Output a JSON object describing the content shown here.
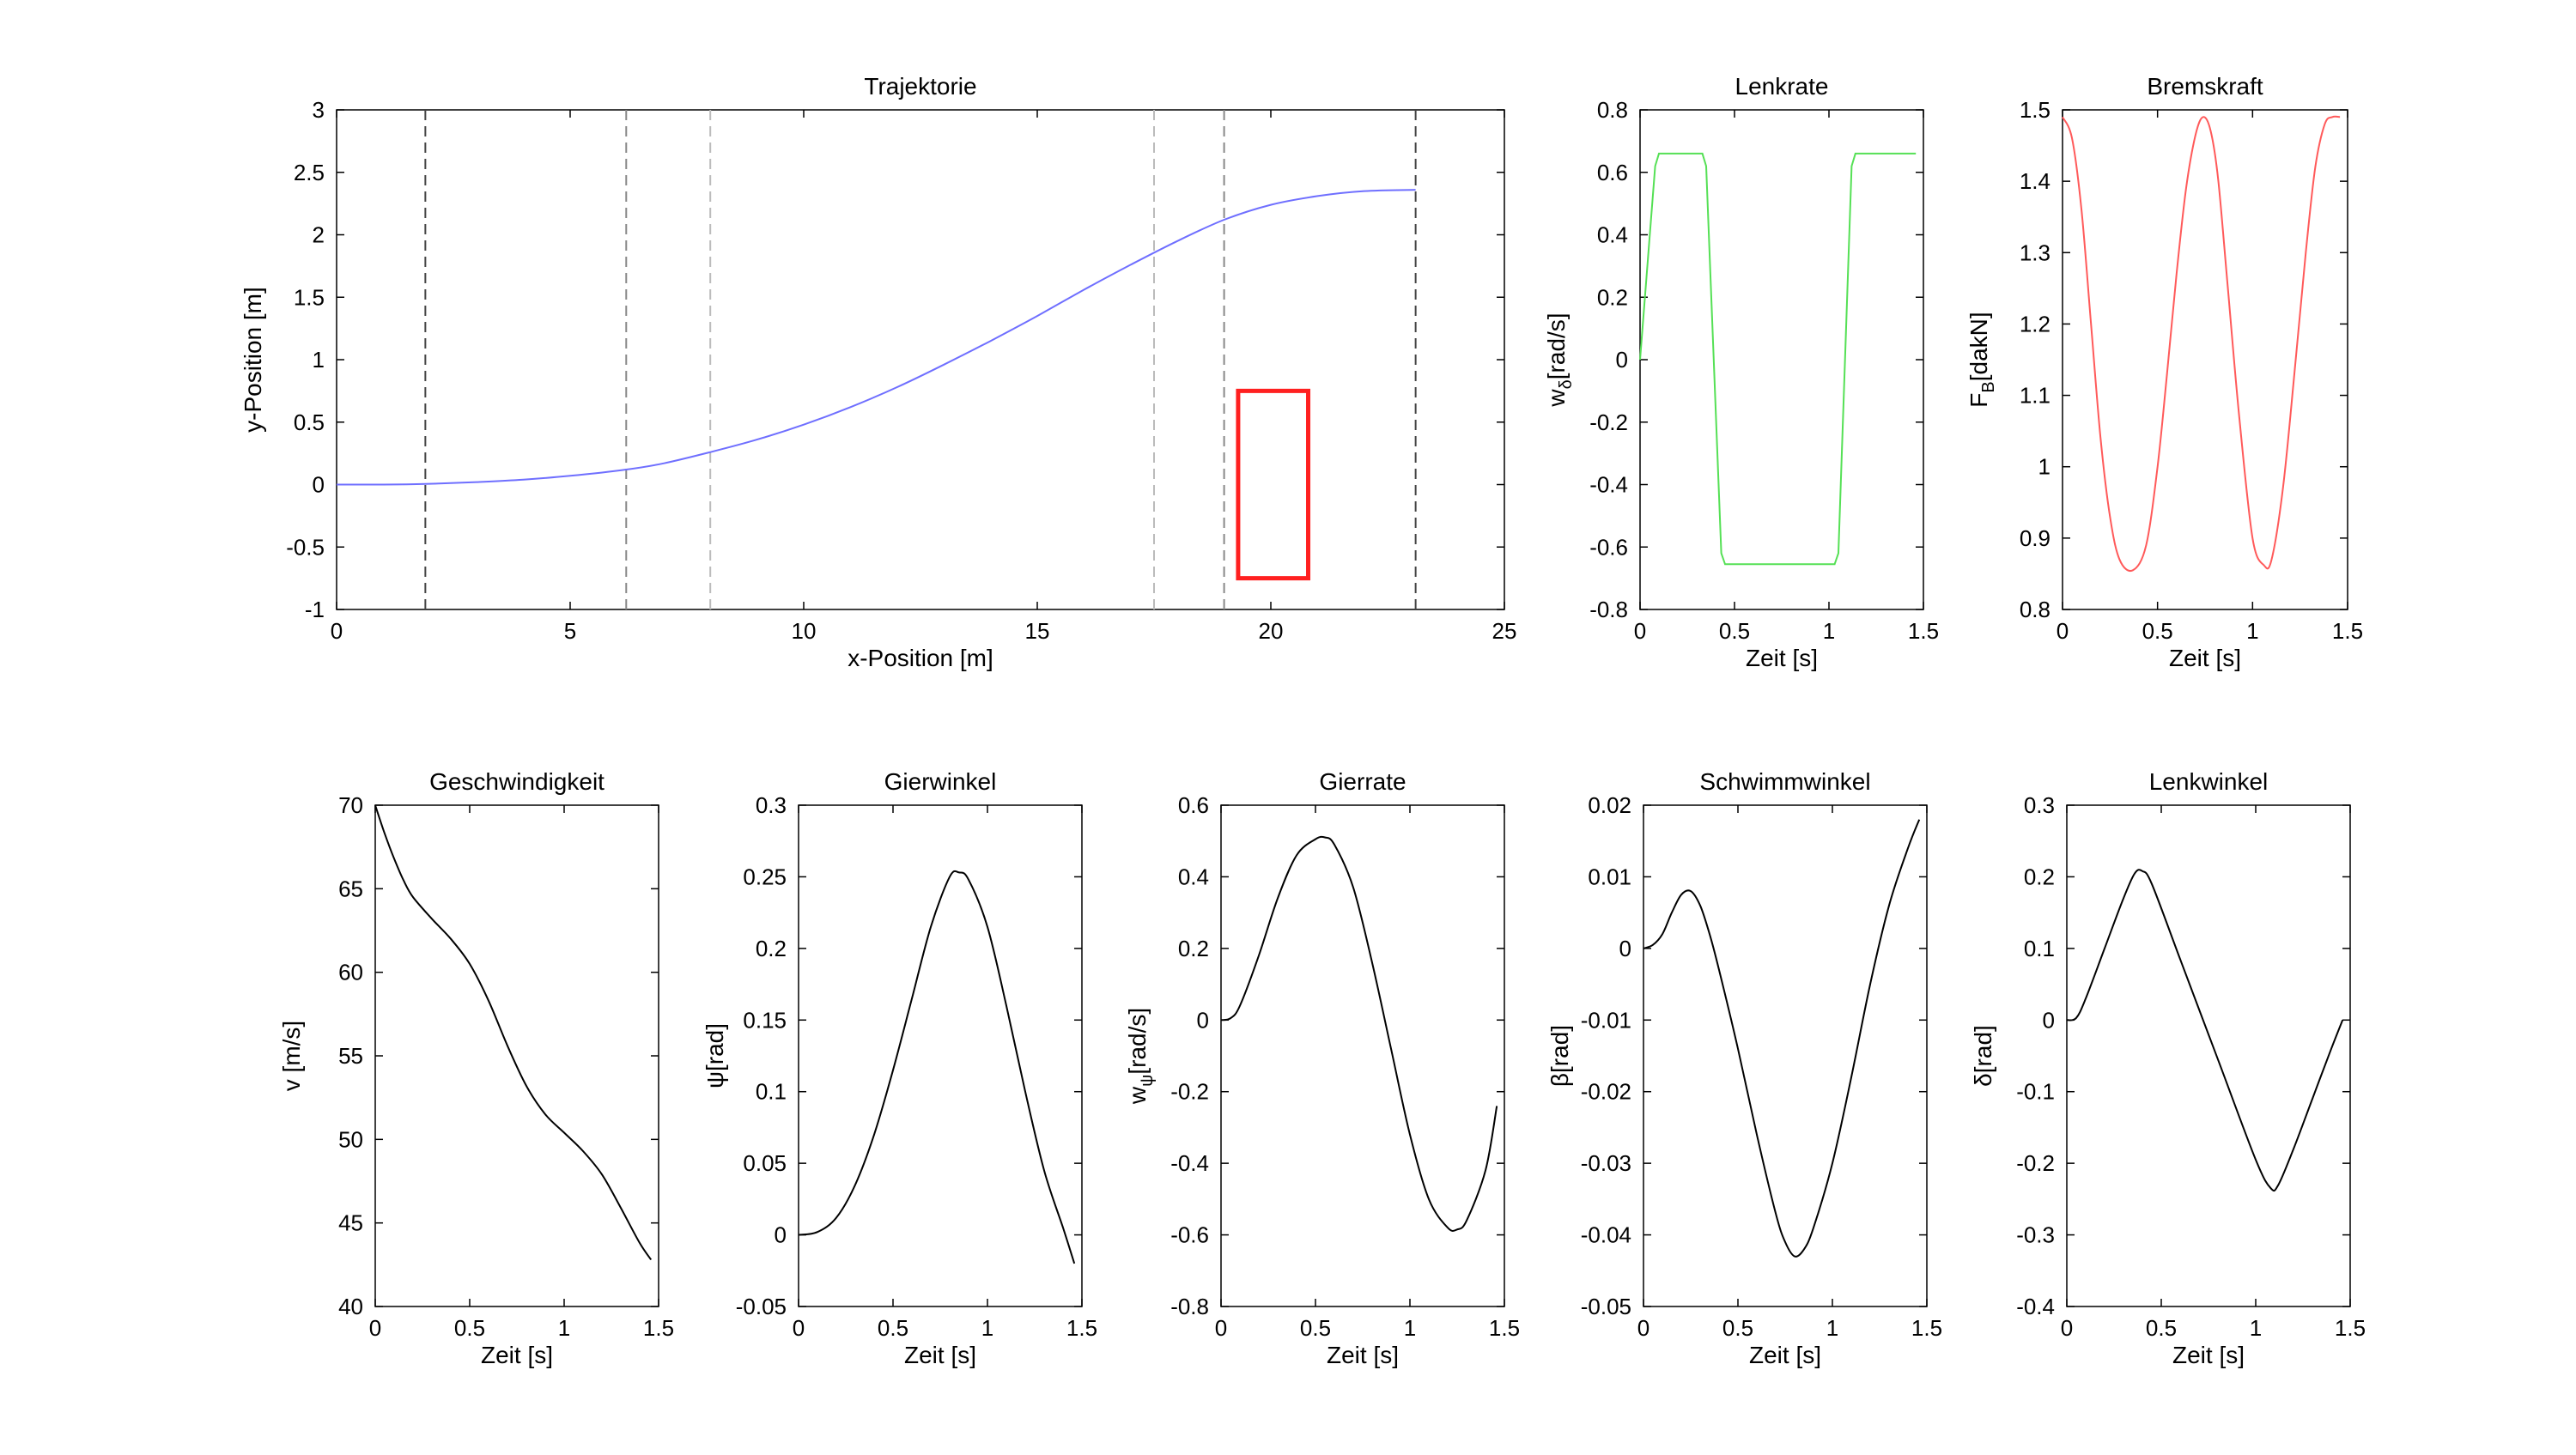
{
  "chart_data": [
    {
      "id": "trajektorie",
      "type": "line",
      "title": "Trajektorie",
      "xlabel": "x-Position [m]",
      "ylabel": "y-Position [m]",
      "ylabel_sub": "",
      "xlim": [
        0,
        25
      ],
      "ylim": [
        -1,
        3
      ],
      "xticks": [
        0,
        5,
        10,
        15,
        20,
        25
      ],
      "yticks": [
        -1,
        -0.5,
        0,
        0.5,
        1,
        1.5,
        2,
        2.5,
        3
      ],
      "series": [
        {
          "color": "#6f6fff",
          "x": [
            0,
            1,
            1.9,
            3,
            4,
            5,
            6.2,
            7,
            8,
            9,
            10,
            11,
            12,
            13,
            14,
            15,
            16,
            17,
            18,
            19,
            20,
            21,
            22,
            23.1
          ],
          "y": [
            0,
            0,
            0.005,
            0.02,
            0.04,
            0.07,
            0.12,
            0.17,
            0.26,
            0.36,
            0.48,
            0.62,
            0.78,
            0.96,
            1.15,
            1.35,
            1.56,
            1.76,
            1.95,
            2.12,
            2.24,
            2.31,
            2.35,
            2.36
          ]
        }
      ],
      "vlines": [
        {
          "x": 1.9,
          "color": "#444444"
        },
        {
          "x": 6.2,
          "color": "#888888"
        },
        {
          "x": 8.0,
          "color": "#bbbbbb"
        },
        {
          "x": 17.5,
          "color": "#bbbbbb"
        },
        {
          "x": 19.0,
          "color": "#888888"
        },
        {
          "x": 23.1,
          "color": "#444444"
        }
      ],
      "rect": {
        "x0": 19.3,
        "x1": 20.8,
        "y0": -0.75,
        "y1": 0.75,
        "color": "#ff2020"
      }
    },
    {
      "id": "lenkrate",
      "type": "line",
      "title": "Lenkrate",
      "xlabel": "Zeit [s]",
      "ylabel": "w",
      "ylabel_sub": "δ",
      "ylabel_suffix": "[rad/s]",
      "xlim": [
        0,
        1.5
      ],
      "ylim": [
        -0.8,
        0.8
      ],
      "xticks": [
        0,
        0.5,
        1,
        1.5
      ],
      "yticks": [
        -0.8,
        -0.6,
        -0.4,
        -0.2,
        0,
        0.2,
        0.4,
        0.6,
        0.8
      ],
      "series": [
        {
          "color": "#55e055",
          "x": [
            0,
            0.08,
            0.1,
            0.33,
            0.35,
            0.43,
            0.45,
            1.03,
            1.05,
            1.12,
            1.14,
            1.46
          ],
          "y": [
            0,
            0.62,
            0.66,
            0.66,
            0.62,
            -0.62,
            -0.655,
            -0.655,
            -0.62,
            0.62,
            0.66,
            0.66
          ]
        }
      ]
    },
    {
      "id": "bremskraft",
      "type": "line",
      "title": "Bremskraft",
      "xlabel": "Zeit [s]",
      "ylabel": "F",
      "ylabel_sub": "B",
      "ylabel_suffix": "[dakN]",
      "xlim": [
        0,
        1.5
      ],
      "ylim": [
        0.8,
        1.5
      ],
      "xticks": [
        0,
        0.5,
        1,
        1.5
      ],
      "yticks": [
        0.8,
        0.9,
        1,
        1.1,
        1.2,
        1.3,
        1.4,
        1.5
      ],
      "series": [
        {
          "color": "#ff5a5a",
          "x": [
            0,
            0.05,
            0.1,
            0.15,
            0.2,
            0.25,
            0.3,
            0.37,
            0.44,
            0.5,
            0.55,
            0.6,
            0.65,
            0.7,
            0.74,
            0.78,
            0.82,
            0.87,
            0.93,
            1.0,
            1.06,
            1.1,
            1.16,
            1.22,
            1.28,
            1.33,
            1.38,
            1.42,
            1.46
          ],
          "y": [
            1.49,
            1.46,
            1.36,
            1.2,
            1.04,
            0.93,
            0.87,
            0.855,
            0.89,
            1.0,
            1.13,
            1.27,
            1.39,
            1.465,
            1.49,
            1.47,
            1.4,
            1.25,
            1.07,
            0.9,
            0.862,
            0.87,
            0.97,
            1.13,
            1.3,
            1.42,
            1.48,
            1.49,
            1.49
          ]
        }
      ]
    },
    {
      "id": "geschwindigkeit",
      "type": "line",
      "title": "Geschwindigkeit",
      "xlabel": "Zeit [s]",
      "ylabel": "v [m/s]",
      "ylabel_sub": "",
      "xlim": [
        0,
        1.5
      ],
      "ylim": [
        40,
        70
      ],
      "xticks": [
        0,
        0.5,
        1,
        1.5
      ],
      "yticks": [
        40,
        45,
        50,
        55,
        60,
        65,
        70
      ],
      "series": [
        {
          "color": "#000000",
          "x": [
            0,
            0.05,
            0.1,
            0.15,
            0.2,
            0.3,
            0.4,
            0.5,
            0.6,
            0.7,
            0.8,
            0.9,
            1.0,
            1.1,
            1.2,
            1.3,
            1.4,
            1.46
          ],
          "y": [
            70,
            68.3,
            66.8,
            65.5,
            64.5,
            63.2,
            62.0,
            60.5,
            58.3,
            55.6,
            53.2,
            51.5,
            50.4,
            49.3,
            47.9,
            45.9,
            43.8,
            42.8
          ]
        }
      ]
    },
    {
      "id": "gierwinkel",
      "type": "line",
      "title": "Gierwinkel",
      "xlabel": "Zeit [s]",
      "ylabel": "ψ[rad]",
      "ylabel_sub": "",
      "xlim": [
        0,
        1.5
      ],
      "ylim": [
        -0.05,
        0.3
      ],
      "xticks": [
        0,
        0.5,
        1,
        1.5
      ],
      "yticks": [
        -0.05,
        0,
        0.05,
        0.1,
        0.15,
        0.2,
        0.25,
        0.3
      ],
      "series": [
        {
          "color": "#000000",
          "x": [
            0,
            0.1,
            0.2,
            0.3,
            0.4,
            0.5,
            0.6,
            0.7,
            0.8,
            0.85,
            0.9,
            1.0,
            1.1,
            1.2,
            1.3,
            1.4,
            1.46
          ],
          "y": [
            0,
            0.002,
            0.012,
            0.035,
            0.07,
            0.115,
            0.165,
            0.215,
            0.25,
            0.253,
            0.248,
            0.215,
            0.16,
            0.1,
            0.045,
            0.005,
            -0.02
          ]
        }
      ]
    },
    {
      "id": "gierrate",
      "type": "line",
      "title": "Gierrate",
      "xlabel": "Zeit [s]",
      "ylabel": "w",
      "ylabel_sub": "ψ",
      "ylabel_suffix": "[rad/s]",
      "xlim": [
        0,
        1.5
      ],
      "ylim": [
        -0.8,
        0.6
      ],
      "xticks": [
        0,
        0.5,
        1,
        1.5
      ],
      "yticks": [
        -0.8,
        -0.6,
        -0.4,
        -0.2,
        0,
        0.2,
        0.4,
        0.6
      ],
      "series": [
        {
          "color": "#000000",
          "x": [
            0,
            0.05,
            0.1,
            0.2,
            0.3,
            0.4,
            0.5,
            0.55,
            0.6,
            0.7,
            0.8,
            0.9,
            1.0,
            1.1,
            1.2,
            1.25,
            1.3,
            1.4,
            1.46
          ],
          "y": [
            0,
            0.005,
            0.04,
            0.18,
            0.34,
            0.46,
            0.505,
            0.51,
            0.49,
            0.37,
            0.16,
            -0.08,
            -0.32,
            -0.5,
            -0.58,
            -0.585,
            -0.56,
            -0.42,
            -0.24
          ]
        }
      ]
    },
    {
      "id": "schwimmwinkel",
      "type": "line",
      "title": "Schwimmwinkel",
      "xlabel": "Zeit [s]",
      "ylabel": "β[rad]",
      "ylabel_sub": "",
      "xlim": [
        0,
        1.5
      ],
      "ylim": [
        -0.05,
        0.02
      ],
      "xticks": [
        0,
        0.5,
        1,
        1.5
      ],
      "yticks": [
        -0.05,
        -0.04,
        -0.03,
        -0.02,
        -0.01,
        0,
        0.01,
        0.02
      ],
      "series": [
        {
          "color": "#000000",
          "x": [
            0,
            0.05,
            0.1,
            0.15,
            0.2,
            0.25,
            0.3,
            0.35,
            0.4,
            0.5,
            0.6,
            0.7,
            0.75,
            0.8,
            0.85,
            0.9,
            1.0,
            1.1,
            1.2,
            1.3,
            1.4,
            1.46
          ],
          "y": [
            0,
            0.0005,
            0.002,
            0.005,
            0.0075,
            0.008,
            0.006,
            0.002,
            -0.003,
            -0.014,
            -0.026,
            -0.037,
            -0.041,
            -0.043,
            -0.042,
            -0.039,
            -0.03,
            -0.018,
            -0.005,
            0.006,
            0.014,
            0.018
          ]
        }
      ]
    },
    {
      "id": "lenkwinkel",
      "type": "line",
      "title": "Lenkwinkel",
      "xlabel": "Zeit [s]",
      "ylabel": "δ[rad]",
      "ylabel_sub": "",
      "xlim": [
        0,
        1.5
      ],
      "ylim": [
        -0.4,
        0.3
      ],
      "xticks": [
        0,
        0.5,
        1,
        1.5
      ],
      "yticks": [
        -0.4,
        -0.3,
        -0.2,
        -0.1,
        0,
        0.1,
        0.2,
        0.3
      ],
      "series": [
        {
          "color": "#000000",
          "x": [
            0,
            0.05,
            0.1,
            0.2,
            0.3,
            0.36,
            0.4,
            0.45,
            0.6,
            0.8,
            1.0,
            1.08,
            1.12,
            1.2,
            1.3,
            1.4,
            1.46
          ],
          "y": [
            0,
            0.003,
            0.03,
            0.1,
            0.17,
            0.205,
            0.208,
            0.19,
            0.085,
            -0.055,
            -0.195,
            -0.235,
            -0.23,
            -0.18,
            -0.11,
            -0.04,
            0
          ]
        }
      ]
    }
  ]
}
